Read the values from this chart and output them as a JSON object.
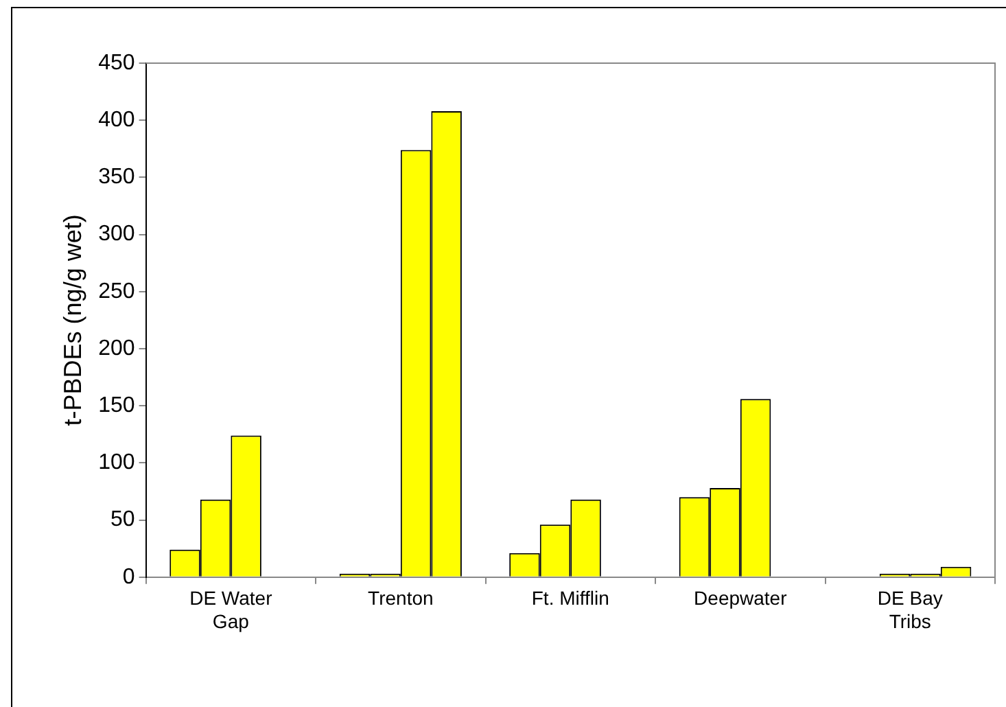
{
  "chart_data": {
    "type": "bar",
    "ylabel": "t-PBDEs (ng/g wet)",
    "categories": [
      "DE Water Gap",
      "Trenton",
      "Ft. Mifflin",
      "Deepwater",
      "DE Bay Tribs"
    ],
    "series": [
      {
        "color": "#ffff00",
        "values": [
          24,
          3,
          21,
          70,
          null
        ]
      },
      {
        "color": "#ffff00",
        "values": [
          68,
          3,
          46,
          78,
          3
        ]
      },
      {
        "color": "#ffff00",
        "values": [
          124,
          374,
          68,
          156,
          3
        ]
      },
      {
        "color": "#ffff00",
        "values": [
          null,
          408,
          null,
          null,
          9
        ]
      }
    ],
    "ylim": [
      0,
      450
    ],
    "yticks": [
      0,
      50,
      100,
      150,
      200,
      250,
      300,
      350,
      400,
      450
    ]
  }
}
